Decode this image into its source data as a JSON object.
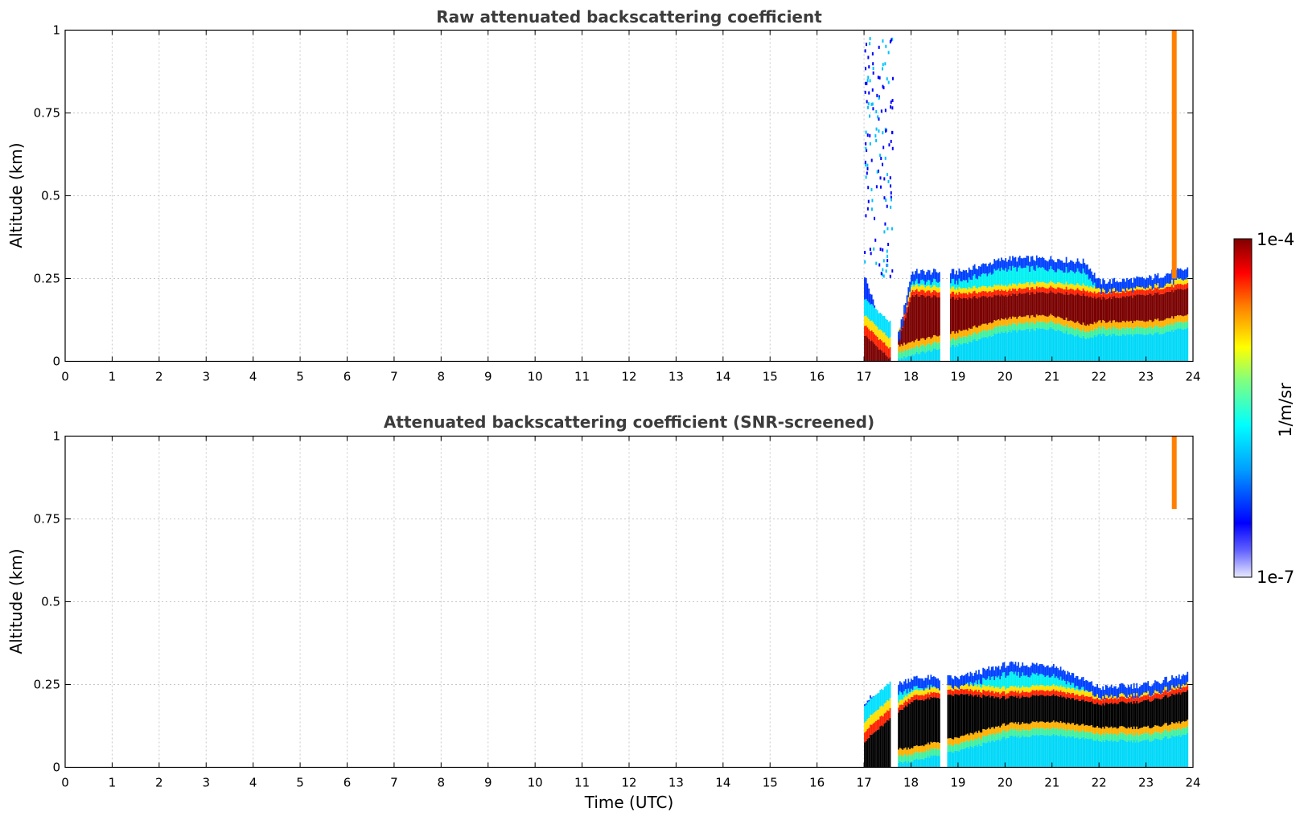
{
  "chart_data": [
    {
      "type": "heatmap",
      "title": "Raw attenuated backscattering coefficient",
      "xlabel": "",
      "ylabel": "Altitude (km)",
      "xlim": [
        0,
        24
      ],
      "ylim": [
        0,
        1
      ],
      "xticks": [
        "0",
        "1",
        "2",
        "3",
        "4",
        "5",
        "6",
        "7",
        "8",
        "9",
        "10",
        "11",
        "12",
        "13",
        "14",
        "15",
        "16",
        "17",
        "18",
        "19",
        "20",
        "21",
        "22",
        "23",
        "24"
      ],
      "yticks": [
        {
          "value": 0,
          "label": "0"
        },
        {
          "value": 0.25,
          "label": "0.25"
        },
        {
          "value": 0.5,
          "label": "0.5"
        },
        {
          "value": 0.75,
          "label": "0.75"
        },
        {
          "value": 1,
          "label": "1"
        }
      ],
      "grid": true,
      "data_time_range": [
        17,
        23.9
      ],
      "profiles": [
        {
          "t": 17.0,
          "dense_top": 0.08,
          "layer_top": 0.26,
          "low_bottom": 0.0
        },
        {
          "t": 17.6,
          "dense_top": 0.0,
          "layer_top": 0.0,
          "low_bottom": 0.0
        },
        {
          "t": 18.0,
          "dense_top": 0.2,
          "layer_top": 0.27,
          "low_bottom": 0.02
        },
        {
          "t": 19.0,
          "dense_top": 0.19,
          "layer_top": 0.27,
          "low_bottom": 0.05
        },
        {
          "t": 20.0,
          "dense_top": 0.2,
          "layer_top": 0.31,
          "low_bottom": 0.09
        },
        {
          "t": 21.0,
          "dense_top": 0.21,
          "layer_top": 0.31,
          "low_bottom": 0.1
        },
        {
          "t": 21.7,
          "dense_top": 0.2,
          "layer_top": 0.3,
          "low_bottom": 0.07
        },
        {
          "t": 22.0,
          "dense_top": 0.19,
          "layer_top": 0.24,
          "low_bottom": 0.08
        },
        {
          "t": 23.0,
          "dense_top": 0.2,
          "layer_top": 0.25,
          "low_bottom": 0.08
        },
        {
          "t": 23.9,
          "dense_top": 0.22,
          "layer_top": 0.28,
          "low_bottom": 0.1
        }
      ]
    },
    {
      "type": "heatmap",
      "title": "Attenuated backscattering coefficient (SNR-screened)",
      "xlabel": "Time (UTC)",
      "ylabel": "Altitude (km)",
      "xlim": [
        0,
        24
      ],
      "ylim": [
        0,
        1
      ],
      "xticks": [
        "0",
        "1",
        "2",
        "3",
        "4",
        "5",
        "6",
        "7",
        "8",
        "9",
        "10",
        "11",
        "12",
        "13",
        "14",
        "15",
        "16",
        "17",
        "18",
        "19",
        "20",
        "21",
        "22",
        "23",
        "24"
      ],
      "yticks": [
        {
          "value": 0,
          "label": "0"
        },
        {
          "value": 0.25,
          "label": "0.25"
        },
        {
          "value": 0.5,
          "label": "0.5"
        },
        {
          "value": 0.75,
          "label": "0.75"
        },
        {
          "value": 1,
          "label": "1"
        }
      ],
      "grid": true,
      "data_time_range": [
        17,
        23.9
      ],
      "saturated_color": "#000000",
      "profiles": [
        {
          "t": 17.0,
          "dense_top": 0.08,
          "layer_top": 0.2,
          "low_bottom": 0.0
        },
        {
          "t": 18.0,
          "dense_top": 0.2,
          "layer_top": 0.27,
          "low_bottom": 0.02
        },
        {
          "t": 19.0,
          "dense_top": 0.22,
          "layer_top": 0.27,
          "low_bottom": 0.05
        },
        {
          "t": 20.0,
          "dense_top": 0.21,
          "layer_top": 0.31,
          "low_bottom": 0.09
        },
        {
          "t": 21.0,
          "dense_top": 0.22,
          "layer_top": 0.31,
          "low_bottom": 0.1
        },
        {
          "t": 22.0,
          "dense_top": 0.19,
          "layer_top": 0.24,
          "low_bottom": 0.08
        },
        {
          "t": 23.0,
          "dense_top": 0.2,
          "layer_top": 0.25,
          "low_bottom": 0.08
        },
        {
          "t": 23.9,
          "dense_top": 0.23,
          "layer_top": 0.28,
          "low_bottom": 0.1
        }
      ]
    }
  ],
  "colorbar": {
    "label": "1/m/sr",
    "max_label": "1e-4",
    "min_label": "1e-7",
    "scale": "log",
    "range": [
      1e-07,
      0.0001
    ],
    "colormap": [
      "#e8e8ff",
      "#0000ff",
      "#00ffff",
      "#ffff00",
      "#ff0000",
      "#800000"
    ]
  }
}
